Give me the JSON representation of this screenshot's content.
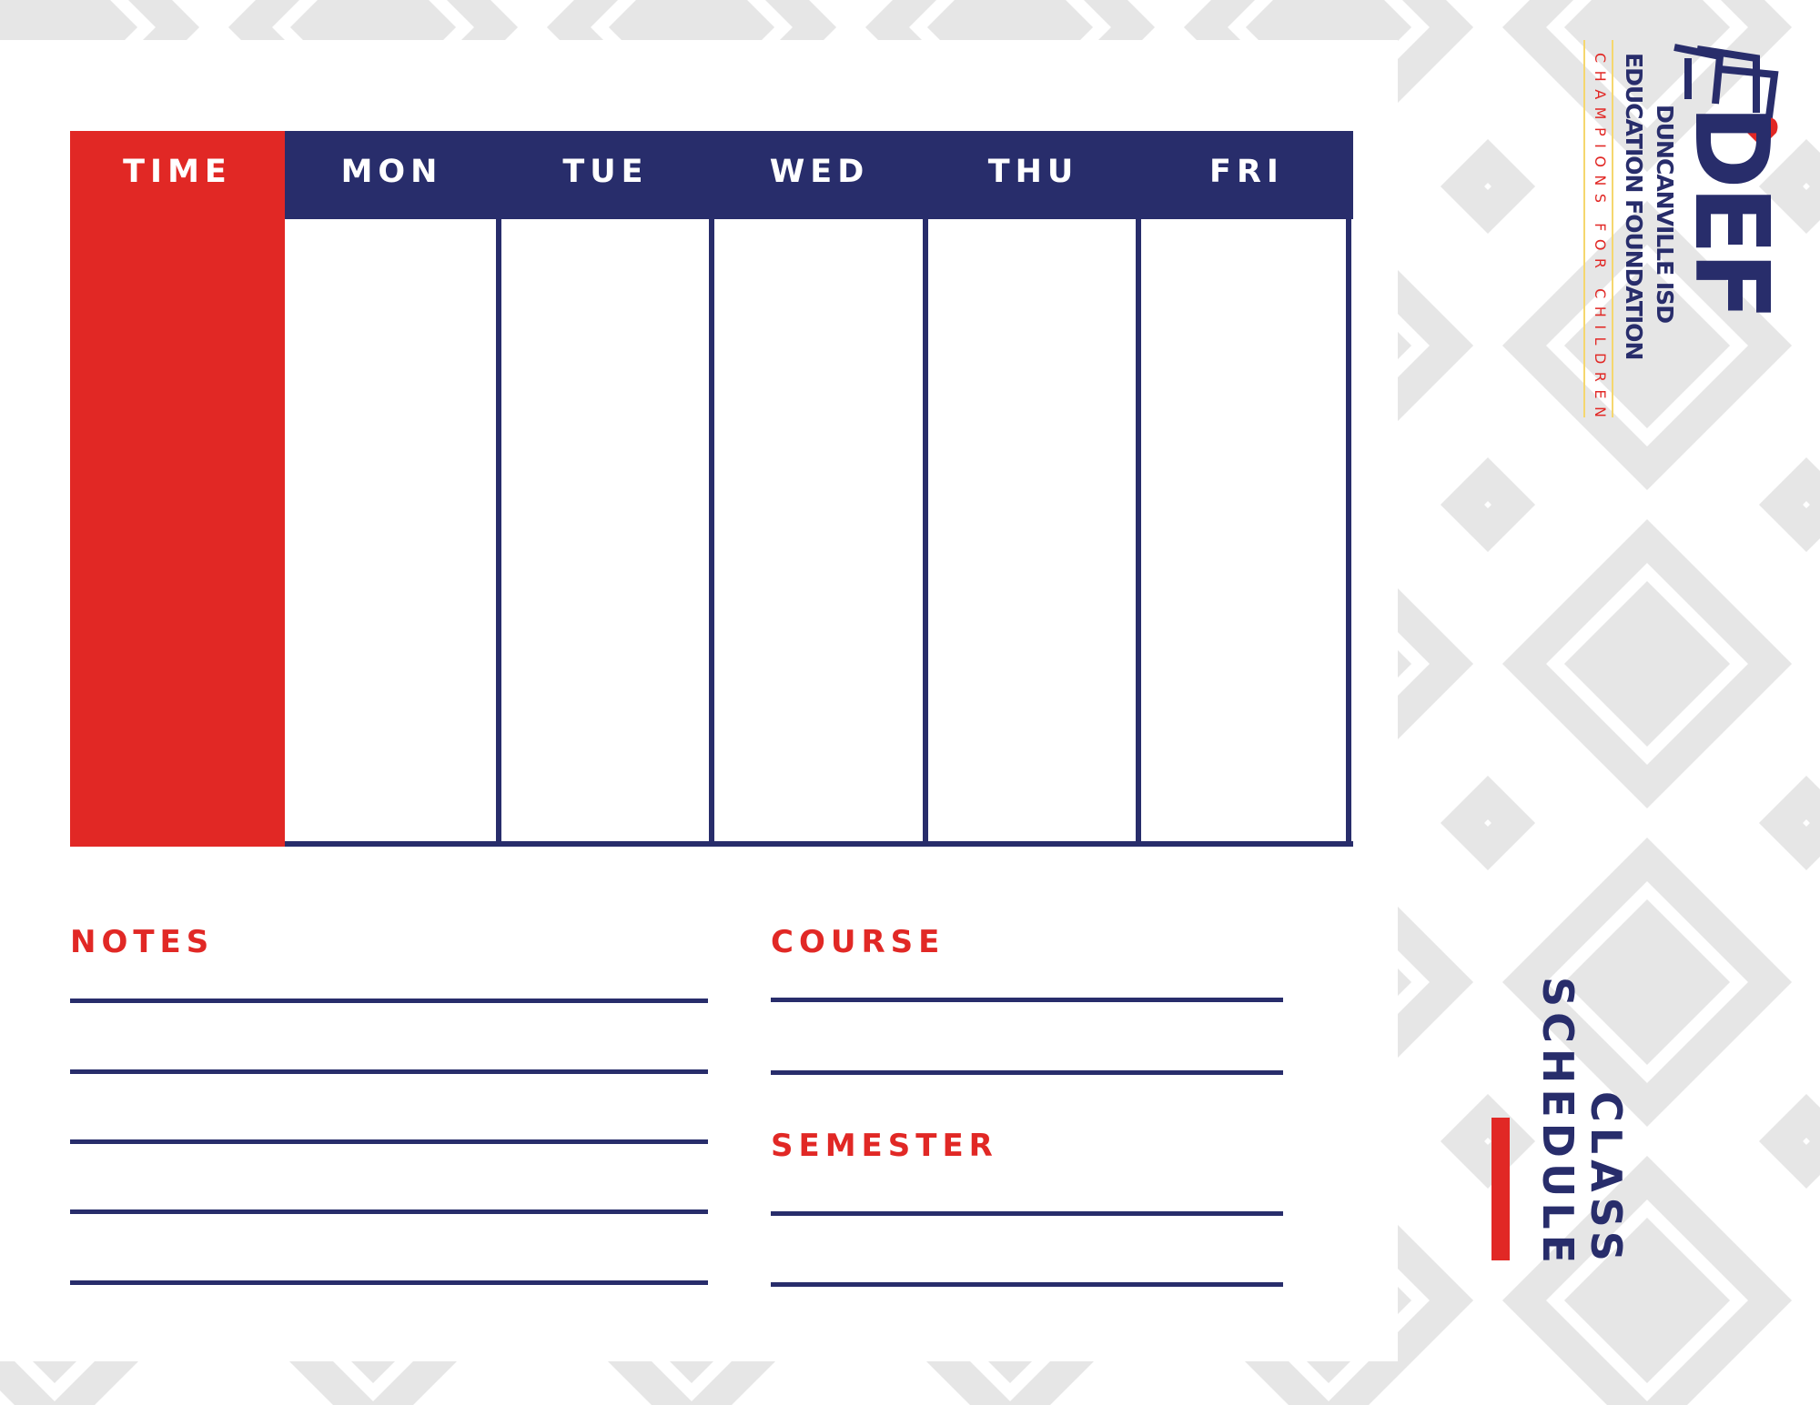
{
  "colors": {
    "navy": "#282d6b",
    "red": "#e12825",
    "pattern_gray": "#e6e6e6",
    "accent_yellow": "#f5d76e"
  },
  "table": {
    "time_header": "TIME",
    "days": [
      "MON",
      "TUE",
      "WED",
      "THU",
      "FRI"
    ]
  },
  "notes": {
    "label": "NOTES"
  },
  "course": {
    "label": "COURSE"
  },
  "semester": {
    "label": "SEMESTER"
  },
  "title": {
    "line1": "CLASS",
    "line2": "SCHEDULE"
  },
  "logo": {
    "mark": "DEF",
    "line1": "DUNCANVILLE ISD",
    "line2": "EDUCATION FOUNDATION",
    "tagline": "CHAMPIONS FOR CHILDREN",
    "icon": "heart-icon"
  }
}
